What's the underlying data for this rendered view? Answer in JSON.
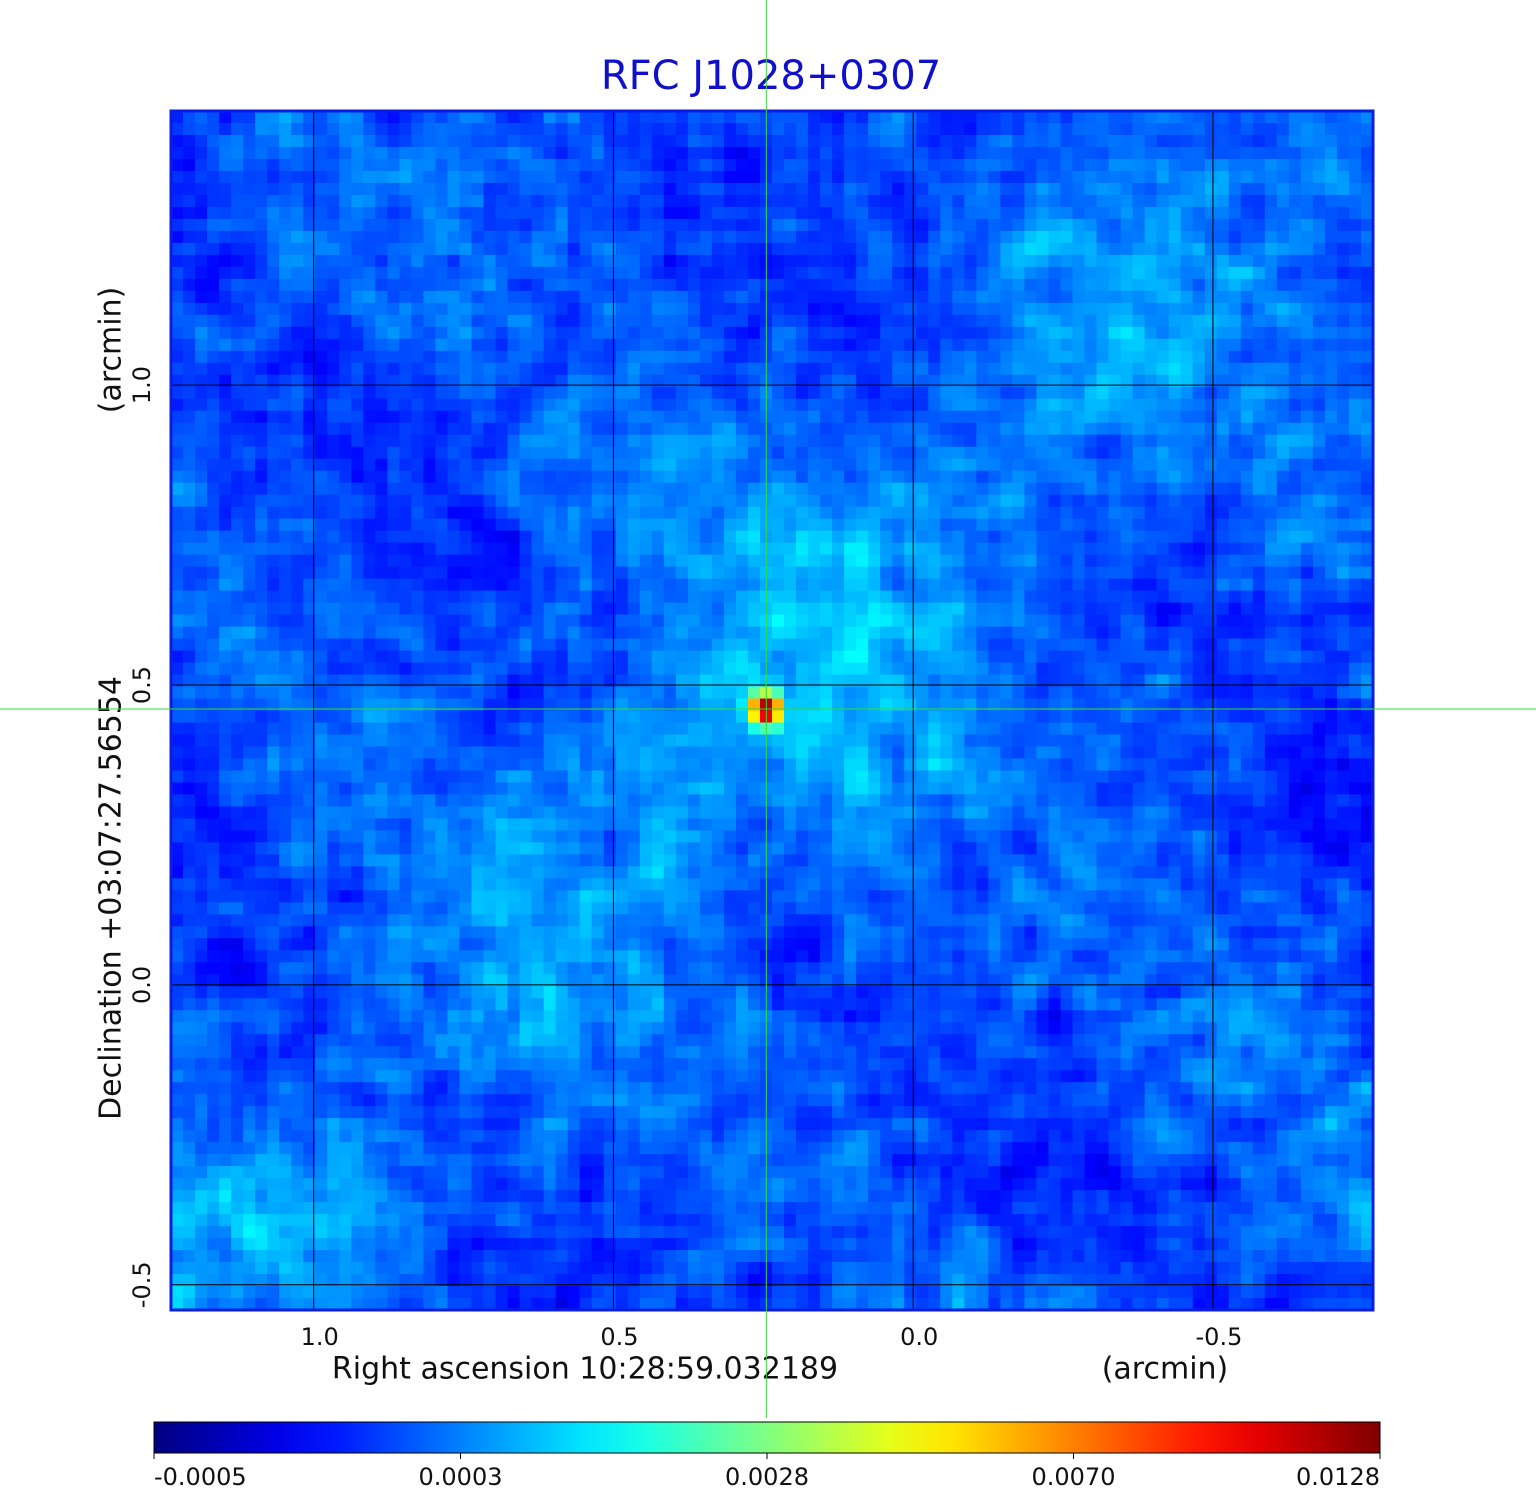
{
  "chart_data": {
    "type": "image",
    "title": "RFC J1028+0307",
    "x_label": "Right ascension  10:28:59.032189",
    "x_unit": "(arcmin)",
    "y_label": "Declination  +03:07:27.56554",
    "y_unit": "(arcmin)",
    "xlim": [
      1.238,
      -0.767
    ],
    "ylim": [
      -0.542,
      1.457
    ],
    "xticks": [
      {
        "value": 1,
        "label": "1.0"
      },
      0.5,
      {
        "value": 0,
        "label": "0.0"
      },
      -0.5
    ],
    "yticks": [
      {
        "value": 1,
        "label": "1.0"
      },
      0.5,
      {
        "value": 0,
        "label": "0.0"
      },
      -0.5
    ],
    "grid": true,
    "crosshair": {
      "x": 0.245,
      "y": 0.46,
      "color": "#33dd33"
    },
    "colormap": "jet",
    "colorbar": {
      "ticks": [
        -0.0005,
        0.0003,
        0.0028,
        {
          "value": 0.007,
          "label": "0.0070"
        },
        0.0128
      ]
    }
  }
}
